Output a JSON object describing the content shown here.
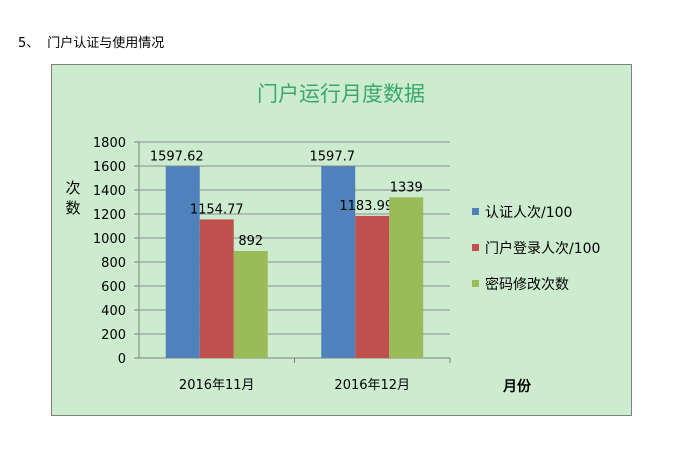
{
  "heading": {
    "number": "5、",
    "text": "门户认证与使用情况"
  },
  "chart_data": {
    "type": "bar",
    "title": "门户运行月度数据",
    "ylabel": "次数",
    "xlabel": "月份",
    "categories": [
      "2016年11月",
      "2016年12月"
    ],
    "ylim": [
      0,
      1800
    ],
    "yticks": [
      0,
      200,
      400,
      600,
      800,
      1000,
      1200,
      1400,
      1600,
      1800
    ],
    "grid": true,
    "legend_position": "right",
    "series": [
      {
        "name": "认证人次/100",
        "values": [
          1597.62,
          1597.7
        ],
        "labels": [
          "1597.62",
          "1597.7"
        ],
        "color": "#4f81bd"
      },
      {
        "name": "门户登录人次/100",
        "values": [
          1154.77,
          1183.99
        ],
        "labels": [
          "1154.77",
          "1183.99"
        ],
        "color": "#c0504d"
      },
      {
        "name": "密码修改次数",
        "values": [
          892,
          1339
        ],
        "labels": [
          "892",
          "1339"
        ],
        "color": "#9bbb59"
      }
    ]
  }
}
